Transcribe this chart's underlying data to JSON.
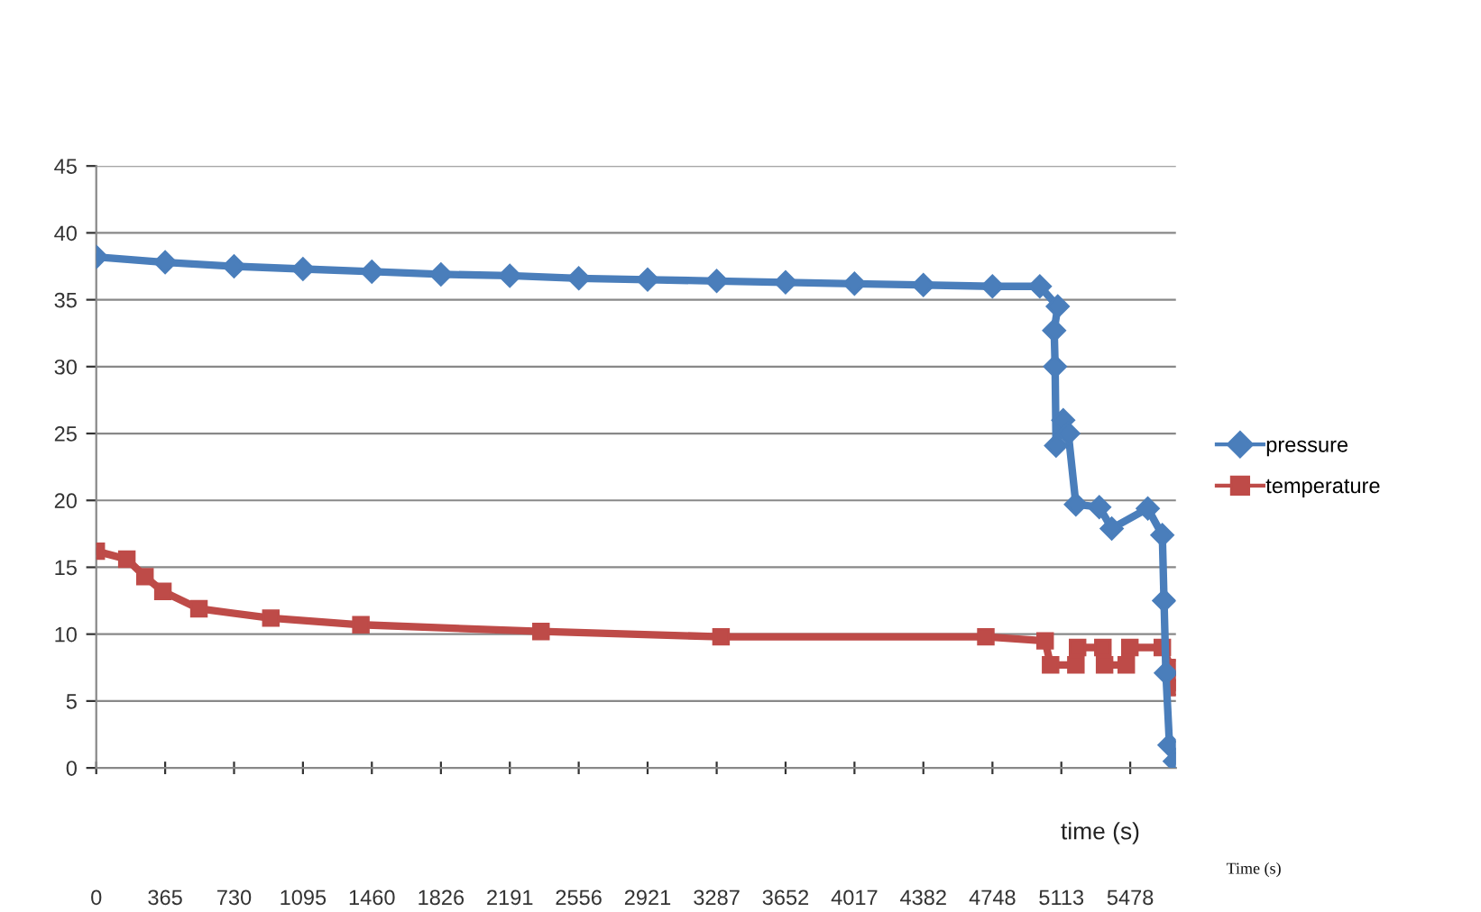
{
  "chart_data": {
    "type": "line",
    "xlabel": "time (s)",
    "annotations": [
      "Time (s)"
    ],
    "xlim": [
      0,
      5720
    ],
    "xticks": [
      0,
      365,
      730,
      1095,
      1460,
      1826,
      2191,
      2556,
      2921,
      3287,
      3652,
      4017,
      4382,
      4748,
      5113,
      5478
    ],
    "ylim": [
      0,
      45
    ],
    "yticks": [
      0,
      5,
      10,
      15,
      20,
      25,
      30,
      35,
      40,
      45
    ],
    "grid": "y",
    "legend": "right",
    "line_style": "solid",
    "series": [
      {
        "name": "pressure",
        "color": "#4a7ebb",
        "marker": "diamond",
        "x": [
          0,
          365,
          730,
          1095,
          1460,
          1826,
          2191,
          2556,
          2921,
          3287,
          3652,
          4017,
          4382,
          4748,
          4999,
          5094,
          5075,
          5080,
          5085,
          5123,
          5150,
          5190,
          5314,
          5380,
          5571,
          5648,
          5657,
          5667,
          5686,
          5714
        ],
        "values": [
          38.2,
          37.8,
          37.5,
          37.3,
          37.1,
          36.9,
          36.8,
          36.6,
          36.5,
          36.4,
          36.3,
          36.2,
          36.1,
          36.0,
          36.0,
          34.5,
          32.7,
          30,
          24.1,
          26,
          25,
          19.7,
          19.5,
          17.9,
          19.4,
          17.4,
          12.5,
          7.1,
          1.7,
          0.5
        ]
      },
      {
        "name": "temperature",
        "color": "#be4b48",
        "marker": "square",
        "x": [
          0,
          162,
          258,
          353,
          544,
          925,
          1402,
          2356,
          3310,
          4713,
          5027,
          5056,
          5190,
          5199,
          5333,
          5342,
          5457,
          5476,
          5648,
          5695,
          5714
        ],
        "values": [
          16.2,
          15.6,
          14.3,
          13.2,
          11.9,
          11.2,
          10.7,
          10.2,
          9.8,
          9.8,
          9.5,
          7.7,
          7.7,
          9.0,
          9.0,
          7.7,
          7.7,
          9.0,
          9.0,
          7.5,
          6.0
        ]
      }
    ]
  }
}
